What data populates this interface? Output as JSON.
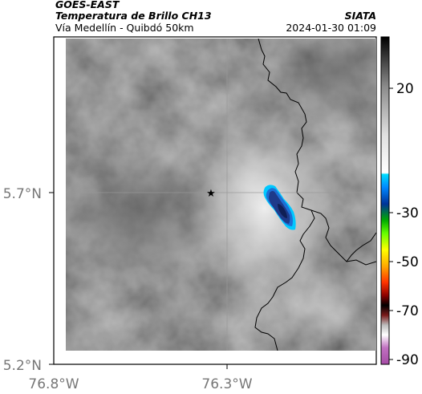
{
  "header": {
    "satellite": "GOES-EAST",
    "product": "Temperatura de Brillo CH13",
    "region": "Vía Medellín - Quibdó 50km",
    "institution": "SIATA",
    "timestamp": "2024-01-30 01:09"
  },
  "axes": {
    "lat_ticks": [
      "5.7°N",
      "5.2°N"
    ],
    "lon_ticks": [
      "76.8°W",
      "76.3°W"
    ]
  },
  "colorbar": {
    "ticks": [
      "20",
      "-30",
      "-50",
      "-70",
      "-90"
    ]
  },
  "colors": {
    "cold_cloud": "#1e3a8a",
    "cloud_edge": "#00c8ff",
    "grid": "#999999"
  },
  "markers": {
    "station": "star-icon"
  }
}
